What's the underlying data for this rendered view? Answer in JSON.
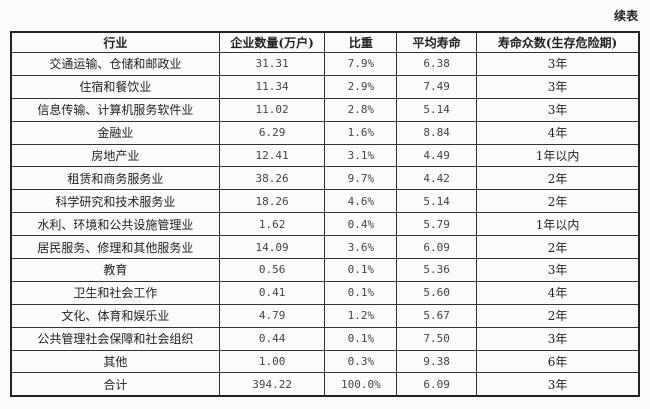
{
  "caption": "续表",
  "table": {
    "headers": [
      "行业",
      "企业数量(万户)",
      "比重",
      "平均寿命",
      "寿命众数(生存危险期)"
    ],
    "rows": [
      [
        "交通运输、仓储和邮政业",
        "31.31",
        "7.9%",
        "6.38",
        "3年"
      ],
      [
        "住宿和餐饮业",
        "11.34",
        "2.9%",
        "7.49",
        "3年"
      ],
      [
        "信息传输、计算机服务软件业",
        "11.02",
        "2.8%",
        "5.14",
        "3年"
      ],
      [
        "金融业",
        "6.29",
        "1.6%",
        "8.84",
        "4年"
      ],
      [
        "房地产业",
        "12.41",
        "3.1%",
        "4.49",
        "1年以内"
      ],
      [
        "租赁和商务服务业",
        "38.26",
        "9.7%",
        "4.42",
        "2年"
      ],
      [
        "科学研究和技术服务业",
        "18.26",
        "4.6%",
        "5.14",
        "2年"
      ],
      [
        "水利、环境和公共设施管理业",
        "1.62",
        "0.4%",
        "5.79",
        "1年以内"
      ],
      [
        "居民服务、修理和其他服务业",
        "14.09",
        "3.6%",
        "6.09",
        "2年"
      ],
      [
        "教育",
        "0.56",
        "0.1%",
        "5.36",
        "3年"
      ],
      [
        "卫生和社会工作",
        "0.41",
        "0.1%",
        "5.60",
        "4年"
      ],
      [
        "文化、体育和娱乐业",
        "4.79",
        "1.2%",
        "5.67",
        "2年"
      ],
      [
        "公共管理社会保障和社会组织",
        "0.44",
        "0.1%",
        "7.50",
        "3年"
      ],
      [
        "其他",
        "1.00",
        "0.3%",
        "9.38",
        "6年"
      ],
      [
        "合计",
        "394.22",
        "100.0%",
        "6.09",
        "3年"
      ]
    ]
  }
}
